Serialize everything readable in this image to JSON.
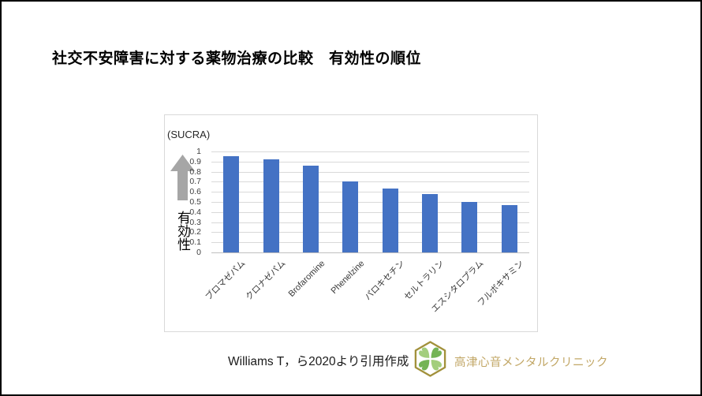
{
  "slide": {
    "title": "社交不安障害に対する薬物治療の比較　有効性の順位"
  },
  "chart_data": {
    "type": "bar",
    "title": "社交不安障害に対する薬物治療の比較 有効性の順位",
    "categories": [
      "ブロマゼパム",
      "クロナゼパム",
      "Brofaromine",
      "Phenelzine",
      "パロキセチン",
      "セルトラリン",
      "エスシタロプラム",
      "フルボキサミン"
    ],
    "values": [
      0.95,
      0.92,
      0.86,
      0.7,
      0.63,
      0.58,
      0.5,
      0.47
    ],
    "ylabel": "(SUCRA)",
    "y_axis_annotation": "有効性",
    "xlabel": "",
    "ylim": [
      0,
      1
    ],
    "yticks": [
      1,
      0.9,
      0.8,
      0.7,
      0.6,
      0.5,
      0.4,
      0.3,
      0.2,
      0.1,
      0
    ],
    "ytick_labels": [
      "1",
      "0.9",
      "0.8",
      "0.7",
      "0.6",
      "0.5",
      "0.4",
      "0.3",
      "0.2",
      "0.1",
      "0"
    ],
    "grid": true,
    "legend_position": "none",
    "bar_color": "#4472C4",
    "gridline_color": "#D9D9D9",
    "axis_line_color": "#BFBFBF",
    "arrow_color": "#A6A6A6"
  },
  "footer": {
    "citation": "Williams T，ら2020より引用作成",
    "clinic_name": "高津心音メンタルクリニック",
    "clinic_name_color": "#C2A766",
    "logo_colors": {
      "hexagon_stroke": "#A2913B",
      "leaf_light": "#A3CE7D",
      "leaf_dark": "#74B455"
    }
  }
}
